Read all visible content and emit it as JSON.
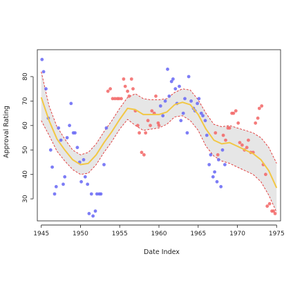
{
  "chart_data": {
    "type": "scatter",
    "title": "",
    "xlabel": "Date Index",
    "ylabel": "Approval Rating",
    "xlim": [
      1944.5,
      1975.5
    ],
    "ylim": [
      21,
      91
    ],
    "xticks": [
      1945,
      1950,
      1955,
      1960,
      1965,
      1970,
      1975
    ],
    "yticks": [
      30,
      40,
      50,
      60,
      70,
      80
    ],
    "grid": false,
    "legend": "none",
    "colors": {
      "blue_points": "#6b6bf5",
      "red_points": "#f26a6a",
      "smooth_line": "#f2c744",
      "band_fill": "#e6e6e6",
      "band_edge": "#e03030"
    },
    "series": [
      {
        "color_key": "blue_points",
        "points": [
          [
            1945.1,
            87
          ],
          [
            1945.3,
            82
          ],
          [
            1945.6,
            75
          ],
          [
            1945.9,
            63
          ],
          [
            1946.2,
            50
          ],
          [
            1946.4,
            43
          ],
          [
            1946.7,
            32
          ],
          [
            1946.9,
            35
          ],
          [
            1947.2,
            59
          ],
          [
            1947.5,
            54
          ],
          [
            1947.8,
            36
          ],
          [
            1948.0,
            39
          ],
          [
            1948.3,
            55
          ],
          [
            1948.6,
            60
          ],
          [
            1948.8,
            69
          ],
          [
            1949.1,
            57
          ],
          [
            1949.3,
            57
          ],
          [
            1949.6,
            51
          ],
          [
            1949.9,
            45
          ],
          [
            1950.1,
            37
          ],
          [
            1950.4,
            46
          ],
          [
            1950.6,
            39
          ],
          [
            1950.9,
            36
          ],
          [
            1951.1,
            24
          ],
          [
            1951.4,
            32
          ],
          [
            1951.6,
            23
          ],
          [
            1951.9,
            25
          ],
          [
            1952.1,
            32
          ],
          [
            1952.4,
            32
          ],
          [
            1952.6,
            32
          ],
          [
            1953.0,
            44
          ],
          [
            1953.3,
            59
          ],
          [
            1960.2,
            68
          ],
          [
            1960.5,
            64
          ],
          [
            1960.8,
            70
          ],
          [
            1961.1,
            83
          ],
          [
            1961.3,
            72
          ],
          [
            1961.6,
            78
          ],
          [
            1961.8,
            79
          ],
          [
            1962.1,
            75
          ],
          [
            1962.3,
            69
          ],
          [
            1962.6,
            76
          ],
          [
            1962.8,
            62
          ],
          [
            1963.1,
            65
          ],
          [
            1963.3,
            71
          ],
          [
            1963.6,
            57
          ],
          [
            1963.8,
            80
          ],
          [
            1964.1,
            70
          ],
          [
            1964.4,
            67
          ],
          [
            1964.6,
            66
          ],
          [
            1964.9,
            69
          ],
          [
            1965.1,
            71
          ],
          [
            1965.4,
            65
          ],
          [
            1965.6,
            64
          ],
          [
            1965.9,
            62
          ],
          [
            1966.1,
            56
          ],
          [
            1966.4,
            44
          ],
          [
            1966.6,
            48
          ],
          [
            1966.9,
            39
          ],
          [
            1967.1,
            41
          ],
          [
            1967.4,
            37
          ],
          [
            1967.6,
            46
          ],
          [
            1967.9,
            35
          ],
          [
            1968.1,
            50
          ],
          [
            1968.4,
            44
          ]
        ]
      },
      {
        "color_key": "red_points",
        "points": [
          [
            1953.5,
            74
          ],
          [
            1953.8,
            75
          ],
          [
            1954.1,
            71
          ],
          [
            1954.4,
            71
          ],
          [
            1954.7,
            71
          ],
          [
            1954.9,
            71
          ],
          [
            1955.2,
            71
          ],
          [
            1955.5,
            79
          ],
          [
            1955.7,
            76
          ],
          [
            1956.0,
            74
          ],
          [
            1956.2,
            72
          ],
          [
            1956.5,
            79
          ],
          [
            1956.7,
            75
          ],
          [
            1957.0,
            66
          ],
          [
            1957.3,
            60
          ],
          [
            1957.5,
            57
          ],
          [
            1957.8,
            49
          ],
          [
            1958.1,
            48
          ],
          [
            1958.3,
            57
          ],
          [
            1958.6,
            62
          ],
          [
            1958.9,
            60
          ],
          [
            1959.1,
            66
          ],
          [
            1959.4,
            65
          ],
          [
            1959.6,
            72
          ],
          [
            1959.9,
            61
          ],
          [
            1960.0,
            60
          ],
          [
            1967.2,
            57
          ],
          [
            1967.5,
            48
          ],
          [
            1968.2,
            56
          ],
          [
            1968.5,
            54
          ],
          [
            1968.8,
            59
          ],
          [
            1969.0,
            59
          ],
          [
            1969.3,
            65
          ],
          [
            1969.5,
            65
          ],
          [
            1969.8,
            66
          ],
          [
            1970.1,
            61
          ],
          [
            1970.3,
            53
          ],
          [
            1970.6,
            52
          ],
          [
            1970.9,
            50
          ],
          [
            1971.2,
            51
          ],
          [
            1971.4,
            54
          ],
          [
            1971.7,
            49
          ],
          [
            1972.0,
            49
          ],
          [
            1972.3,
            61
          ],
          [
            1972.6,
            63
          ],
          [
            1972.8,
            67
          ],
          [
            1973.1,
            68
          ],
          [
            1973.3,
            44
          ],
          [
            1973.6,
            40
          ],
          [
            1973.8,
            27
          ],
          [
            1974.1,
            28
          ],
          [
            1974.4,
            25
          ],
          [
            1974.6,
            25
          ],
          [
            1974.8,
            24
          ]
        ]
      }
    ],
    "smooth": {
      "x": [
        1945,
        1946,
        1947,
        1948,
        1949,
        1950,
        1951,
        1952,
        1953,
        1954,
        1955,
        1956,
        1957,
        1958,
        1959,
        1960,
        1961,
        1962,
        1963,
        1964,
        1965,
        1966,
        1967,
        1968,
        1969,
        1970,
        1971,
        1972,
        1973,
        1974,
        1975
      ],
      "y": [
        71.5,
        62,
        54.5,
        50,
        46,
        44,
        44.5,
        48,
        53,
        57.5,
        62.5,
        67,
        66.5,
        64.5,
        64.5,
        64.5,
        65.5,
        68.5,
        69.5,
        68.5,
        64.5,
        58.5,
        54,
        52.5,
        53,
        51.5,
        50,
        48.5,
        46,
        41.5,
        34.5
      ],
      "lower": [
        62,
        56,
        49.5,
        45.5,
        42,
        40,
        40.5,
        44,
        49,
        53.5,
        58.5,
        62.5,
        60,
        58,
        58.5,
        59,
        60.5,
        63.5,
        64,
        62,
        58,
        51.5,
        47.5,
        45.5,
        44.5,
        43,
        41.5,
        40,
        37,
        31.5,
        24.5
      ],
      "upper": [
        82,
        68,
        59.5,
        54.5,
        50,
        48,
        49,
        52.5,
        57.5,
        62,
        67,
        71.5,
        73,
        71,
        70.5,
        70.5,
        71,
        73.5,
        75,
        74.5,
        70.5,
        65,
        60.5,
        59.5,
        60,
        59,
        58,
        57,
        55,
        51,
        44.5
      ]
    }
  }
}
